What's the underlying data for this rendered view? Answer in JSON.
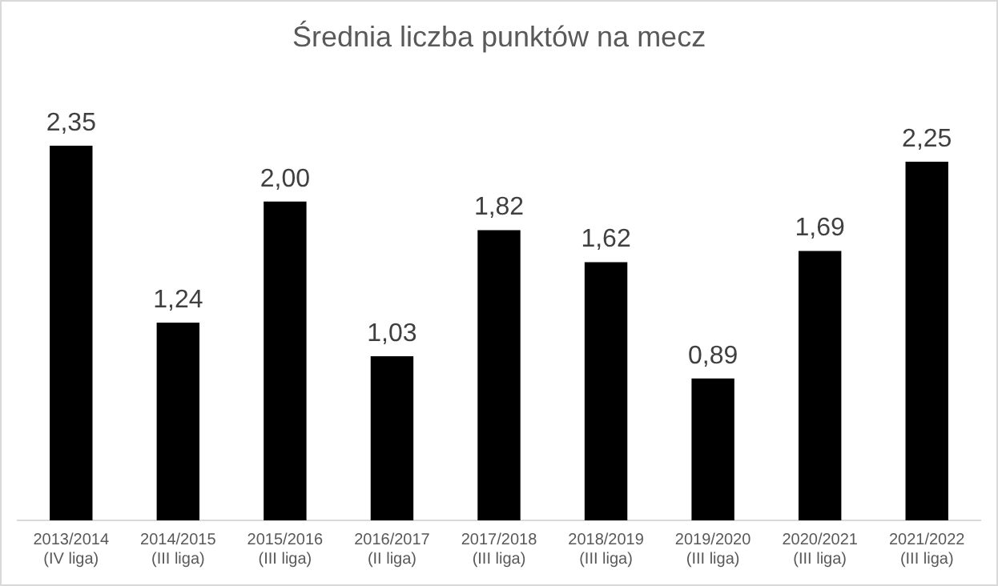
{
  "chart_data": {
    "type": "bar",
    "title": "Średnia liczba punktów na mecz",
    "categories": [
      "2013/2014 (IV liga)",
      "2014/2015 (III liga)",
      "2015/2016 (III liga)",
      "2016/2017 (II liga)",
      "2017/2018 (III liga)",
      "2018/2019 (III liga)",
      "2019/2020 (III liga)",
      "2020/2021 (III liga)",
      "2021/2022 (III liga)"
    ],
    "values": [
      2.35,
      1.24,
      2.0,
      1.03,
      1.82,
      1.62,
      0.89,
      1.69,
      2.25
    ],
    "value_labels": [
      "2,35",
      "1,24",
      "2,00",
      "1,03",
      "1,82",
      "1,62",
      "0,89",
      "1,69",
      "2,25"
    ],
    "color": "#000000",
    "grid": false,
    "legend": false
  }
}
